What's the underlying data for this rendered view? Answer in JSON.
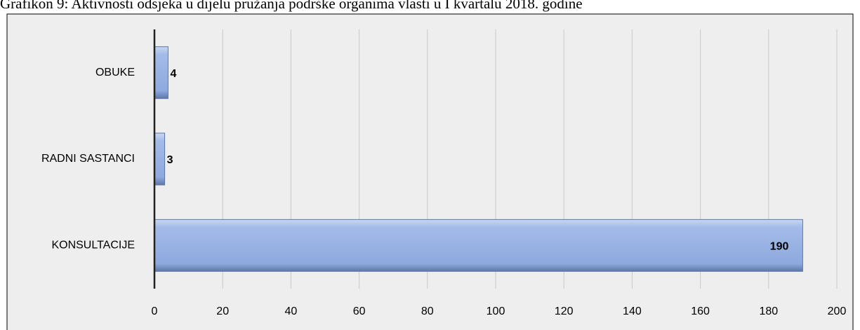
{
  "chart_data": {
    "type": "bar",
    "orientation": "horizontal",
    "title": "Grafikon 9: Aktivnosti odsjeka u dijelu pružanja podrške organima vlasti u I kvartalu 2018. godine",
    "categories": [
      "OBUKE",
      "RADNI SASTANCI",
      "KONSULTACIJE"
    ],
    "values": [
      4,
      3,
      190
    ],
    "color": "#8eaadf",
    "xlim": [
      0,
      200
    ],
    "xticks": [
      0,
      20,
      40,
      60,
      80,
      100,
      120,
      140,
      160,
      180,
      200
    ],
    "grid": true
  }
}
